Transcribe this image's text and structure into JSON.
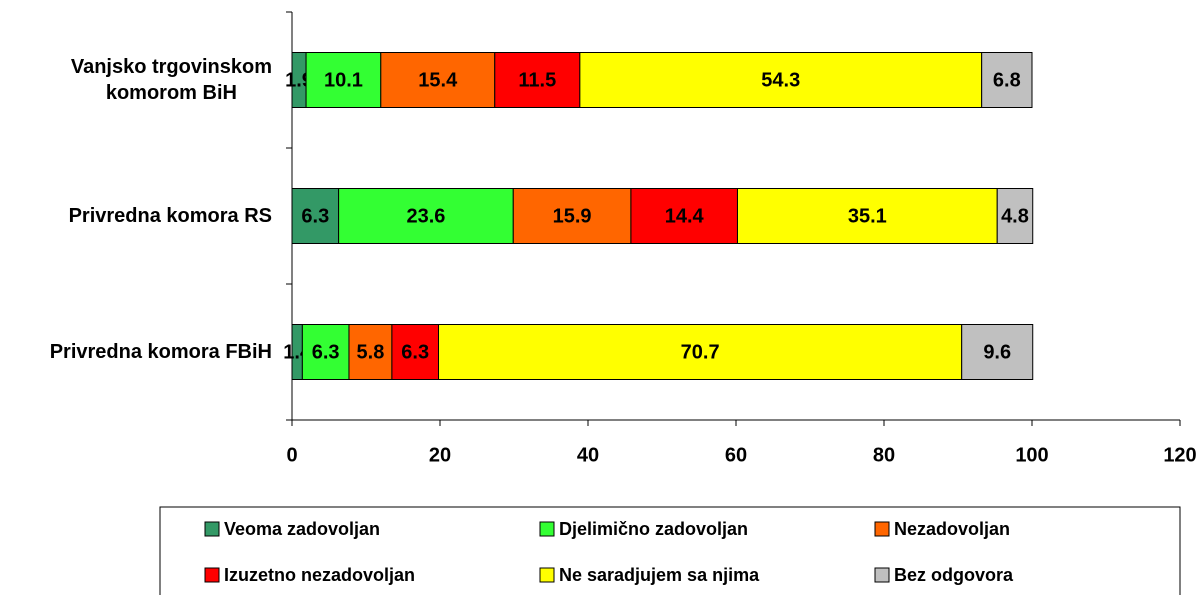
{
  "chart_data": {
    "type": "stacked_bar_horizontal",
    "categories": [
      "Vanjsko trgovinskom\nkomorom BiH",
      "Privredna komora RS",
      "Privredna komora FBiH"
    ],
    "series": [
      {
        "name": "Veoma zadovoljan",
        "color": "#339966",
        "values": [
          1.9,
          6.3,
          1.4
        ]
      },
      {
        "name": "Djelimično zadovoljan",
        "color": "#33ff33",
        "values": [
          10.1,
          23.6,
          6.3
        ]
      },
      {
        "name": "Nezadovoljan",
        "color": "#ff6600",
        "values": [
          15.4,
          15.9,
          5.8
        ]
      },
      {
        "name": "Izuzetno nezadovoljan",
        "color": "#ff0000",
        "values": [
          11.5,
          14.4,
          6.3
        ]
      },
      {
        "name": "Ne saradjujem sa njima",
        "color": "#ffff00",
        "values": [
          54.3,
          35.1,
          70.7
        ]
      },
      {
        "name": "Bez odgovora",
        "color": "#c0c0c0",
        "values": [
          6.8,
          4.8,
          9.6
        ]
      }
    ],
    "xlim": [
      0,
      120
    ],
    "xticks": [
      0,
      20,
      40,
      60,
      80,
      100,
      120
    ],
    "legend": "bottom"
  }
}
